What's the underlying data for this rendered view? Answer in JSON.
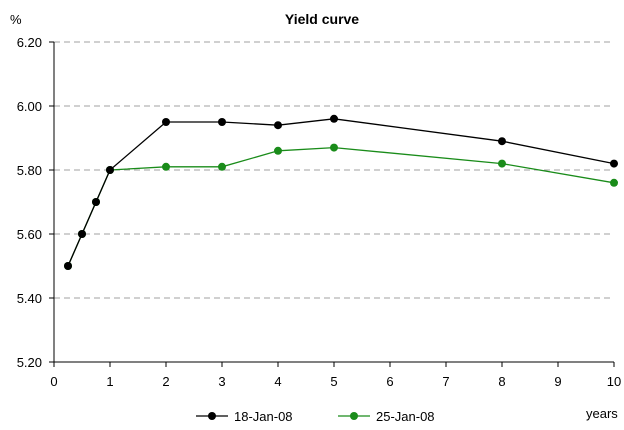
{
  "chart_data": {
    "type": "line",
    "title": "Yield curve",
    "ylabel": "%",
    "xlabel": "years",
    "xlim": [
      0,
      10
    ],
    "ylim": [
      5.2,
      6.2
    ],
    "x_ticks": [
      0,
      1,
      2,
      3,
      4,
      5,
      6,
      7,
      8,
      9,
      10
    ],
    "x_tick_labels": [
      "0",
      "1",
      "2",
      "3",
      "4",
      "5",
      "6",
      "7",
      "8",
      "9",
      "10"
    ],
    "y_ticks": [
      5.2,
      5.4,
      5.6,
      5.8,
      6.0,
      6.2
    ],
    "y_tick_labels": [
      "5.20",
      "5.40",
      "5.60",
      "5.80",
      "6.00",
      "6.20"
    ],
    "grid": "horizontal dashed",
    "legend_position": "bottom",
    "series": [
      {
        "name": "18-Jan-08",
        "color": "#000000",
        "x": [
          0.25,
          0.5,
          0.75,
          1,
          2,
          3,
          4,
          5,
          8,
          10
        ],
        "y": [
          5.5,
          5.6,
          5.7,
          5.8,
          5.95,
          5.95,
          5.94,
          5.96,
          5.89,
          5.82
        ]
      },
      {
        "name": "25-Jan-08",
        "color": "#1a8c1a",
        "x": [
          0.25,
          0.5,
          0.75,
          1,
          2,
          3,
          4,
          5,
          8,
          10
        ],
        "y": [
          5.5,
          5.6,
          5.7,
          5.8,
          5.81,
          5.81,
          5.86,
          5.87,
          5.82,
          5.76
        ]
      }
    ]
  }
}
